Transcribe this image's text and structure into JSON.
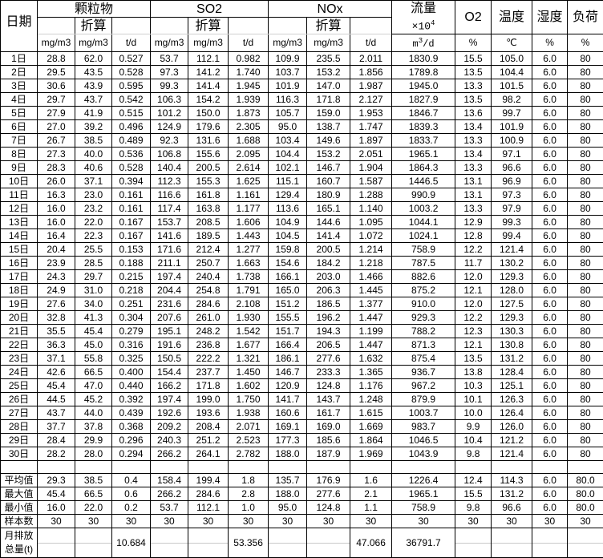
{
  "header": {
    "date": "日期",
    "groups": [
      "颗粒物",
      "SO2",
      "NOx"
    ],
    "converted": "折算",
    "flow": "流量",
    "flow_mult": "×10",
    "flow_exp": "4",
    "flow_unit_a": "m",
    "flow_unit_exp": "3",
    "flow_unit_b": "/d",
    "o2": "O2",
    "temp": "温度",
    "humidity": "湿度",
    "load": "负荷",
    "units": [
      "mg/m3",
      "mg/m3",
      "t/d",
      "mg/m3",
      "mg/m3",
      "t/d",
      "mg/m3",
      "mg/m3",
      "t/d"
    ],
    "unit_pct": "%",
    "unit_temp": "℃"
  },
  "rows": [
    [
      "1日",
      "28.8",
      "62.0",
      "0.527",
      "53.7",
      "112.1",
      "0.982",
      "109.9",
      "235.5",
      "2.011",
      "1830.9",
      "15.5",
      "105.0",
      "6.0",
      "80"
    ],
    [
      "2日",
      "29.5",
      "43.5",
      "0.528",
      "97.3",
      "141.2",
      "1.740",
      "103.7",
      "153.2",
      "1.856",
      "1789.8",
      "13.5",
      "104.4",
      "6.0",
      "80"
    ],
    [
      "3日",
      "30.6",
      "43.9",
      "0.595",
      "99.3",
      "141.4",
      "1.945",
      "101.9",
      "147.0",
      "1.987",
      "1945.0",
      "13.3",
      "101.5",
      "6.0",
      "80"
    ],
    [
      "4日",
      "29.7",
      "43.7",
      "0.542",
      "106.3",
      "154.2",
      "1.939",
      "116.3",
      "171.8",
      "2.127",
      "1827.9",
      "13.5",
      "98.2",
      "6.0",
      "80"
    ],
    [
      "5日",
      "27.9",
      "41.9",
      "0.515",
      "101.2",
      "150.0",
      "1.873",
      "105.7",
      "159.0",
      "1.953",
      "1846.7",
      "13.6",
      "99.7",
      "6.0",
      "80"
    ],
    [
      "6日",
      "27.0",
      "39.2",
      "0.496",
      "124.9",
      "179.6",
      "2.305",
      "95.0",
      "138.7",
      "1.747",
      "1839.3",
      "13.4",
      "101.9",
      "6.0",
      "80"
    ],
    [
      "7日",
      "26.7",
      "38.5",
      "0.489",
      "92.3",
      "131.6",
      "1.688",
      "103.4",
      "149.6",
      "1.897",
      "1833.7",
      "13.3",
      "100.9",
      "6.0",
      "80"
    ],
    [
      "8日",
      "27.3",
      "40.0",
      "0.536",
      "106.8",
      "155.6",
      "2.095",
      "104.4",
      "153.2",
      "2.051",
      "1965.1",
      "13.4",
      "97.1",
      "6.0",
      "80"
    ],
    [
      "9日",
      "28.3",
      "40.6",
      "0.528",
      "140.4",
      "200.5",
      "2.614",
      "102.1",
      "146.7",
      "1.904",
      "1864.3",
      "13.3",
      "96.6",
      "6.0",
      "80"
    ],
    [
      "10日",
      "26.0",
      "37.1",
      "0.394",
      "112.3",
      "155.3",
      "1.625",
      "115.1",
      "160.7",
      "1.587",
      "1446.5",
      "13.1",
      "96.9",
      "6.0",
      "80"
    ],
    [
      "11日",
      "16.3",
      "23.0",
      "0.161",
      "116.6",
      "161.8",
      "1.161",
      "129.4",
      "180.9",
      "1.288",
      "990.9",
      "13.1",
      "97.3",
      "6.0",
      "80"
    ],
    [
      "12日",
      "16.0",
      "23.2",
      "0.161",
      "117.4",
      "163.8",
      "1.177",
      "113.6",
      "165.1",
      "1.140",
      "1003.2",
      "13.3",
      "97.9",
      "6.0",
      "80"
    ],
    [
      "13日",
      "16.0",
      "22.0",
      "0.167",
      "153.7",
      "208.5",
      "1.606",
      "104.9",
      "144.6",
      "1.095",
      "1044.1",
      "12.9",
      "99.3",
      "6.0",
      "80"
    ],
    [
      "14日",
      "16.4",
      "22.3",
      "0.167",
      "141.6",
      "189.5",
      "1.443",
      "104.5",
      "141.4",
      "1.072",
      "1024.1",
      "12.8",
      "99.4",
      "6.0",
      "80"
    ],
    [
      "15日",
      "20.4",
      "25.5",
      "0.153",
      "171.6",
      "212.4",
      "1.277",
      "159.8",
      "200.5",
      "1.214",
      "758.9",
      "12.2",
      "121.4",
      "6.0",
      "80"
    ],
    [
      "16日",
      "23.9",
      "28.5",
      "0.188",
      "211.1",
      "250.7",
      "1.663",
      "154.6",
      "184.2",
      "1.218",
      "787.5",
      "11.7",
      "130.2",
      "6.0",
      "80"
    ],
    [
      "17日",
      "24.3",
      "29.7",
      "0.215",
      "197.4",
      "240.4",
      "1.738",
      "166.1",
      "203.0",
      "1.466",
      "882.6",
      "12.0",
      "129.3",
      "6.0",
      "80"
    ],
    [
      "18日",
      "24.9",
      "31.0",
      "0.218",
      "204.4",
      "254.8",
      "1.791",
      "165.0",
      "206.3",
      "1.445",
      "875.2",
      "12.1",
      "128.0",
      "6.0",
      "80"
    ],
    [
      "19日",
      "27.6",
      "34.0",
      "0.251",
      "231.6",
      "284.6",
      "2.108",
      "151.2",
      "186.5",
      "1.377",
      "910.0",
      "12.0",
      "127.5",
      "6.0",
      "80"
    ],
    [
      "20日",
      "32.8",
      "41.3",
      "0.304",
      "207.6",
      "261.0",
      "1.930",
      "155.5",
      "196.2",
      "1.447",
      "929.3",
      "12.2",
      "129.3",
      "6.0",
      "80"
    ],
    [
      "21日",
      "35.5",
      "45.4",
      "0.279",
      "195.1",
      "248.2",
      "1.542",
      "151.7",
      "194.3",
      "1.199",
      "788.2",
      "12.3",
      "130.3",
      "6.0",
      "80"
    ],
    [
      "22日",
      "36.3",
      "45.0",
      "0.316",
      "191.6",
      "236.8",
      "1.677",
      "166.4",
      "206.5",
      "1.447",
      "871.3",
      "12.1",
      "130.8",
      "6.0",
      "80"
    ],
    [
      "23日",
      "37.1",
      "55.8",
      "0.325",
      "150.5",
      "222.2",
      "1.321",
      "186.1",
      "277.6",
      "1.632",
      "875.4",
      "13.5",
      "131.2",
      "6.0",
      "80"
    ],
    [
      "24日",
      "42.6",
      "66.5",
      "0.400",
      "154.4",
      "237.7",
      "1.450",
      "146.7",
      "233.3",
      "1.365",
      "936.7",
      "13.8",
      "128.4",
      "6.0",
      "80"
    ],
    [
      "25日",
      "45.4",
      "47.0",
      "0.440",
      "166.2",
      "171.8",
      "1.602",
      "120.9",
      "124.8",
      "1.176",
      "967.2",
      "10.3",
      "125.1",
      "6.0",
      "80"
    ],
    [
      "26日",
      "44.5",
      "45.2",
      "0.392",
      "197.4",
      "199.0",
      "1.750",
      "141.7",
      "143.7",
      "1.248",
      "879.9",
      "10.1",
      "126.3",
      "6.0",
      "80"
    ],
    [
      "27日",
      "43.7",
      "44.0",
      "0.439",
      "192.6",
      "193.6",
      "1.938",
      "160.6",
      "161.7",
      "1.615",
      "1003.7",
      "10.0",
      "126.4",
      "6.0",
      "80"
    ],
    [
      "28日",
      "37.7",
      "37.8",
      "0.368",
      "209.2",
      "208.4",
      "2.071",
      "169.1",
      "169.0",
      "1.669",
      "983.7",
      "9.9",
      "126.0",
      "6.0",
      "80"
    ],
    [
      "29日",
      "28.4",
      "29.9",
      "0.296",
      "240.3",
      "251.2",
      "2.523",
      "177.3",
      "185.6",
      "1.864",
      "1046.5",
      "10.4",
      "121.2",
      "6.0",
      "80"
    ],
    [
      "30日",
      "28.2",
      "28.0",
      "0.294",
      "266.2",
      "264.1",
      "2.782",
      "188.0",
      "187.9",
      "1.969",
      "1043.9",
      "9.8",
      "121.4",
      "6.0",
      "80"
    ]
  ],
  "stats": [
    [
      "平均值",
      "29.3",
      "38.5",
      "0.4",
      "158.4",
      "199.4",
      "1.8",
      "135.7",
      "176.9",
      "1.6",
      "1226.4",
      "12.4",
      "114.3",
      "6.0",
      "80.0"
    ],
    [
      "最大值",
      "45.4",
      "66.5",
      "0.6",
      "266.2",
      "284.6",
      "2.8",
      "188.0",
      "277.6",
      "2.1",
      "1965.1",
      "15.5",
      "131.2",
      "6.0",
      "80.0"
    ],
    [
      "最小值",
      "16.0",
      "22.0",
      "0.2",
      "53.7",
      "112.1",
      "1.0",
      "95.0",
      "124.8",
      "1.1",
      "758.9",
      "9.8",
      "96.6",
      "6.0",
      "80.0"
    ],
    [
      "样本数",
      "30",
      "30",
      "30",
      "30",
      "30",
      "30",
      "30",
      "30",
      "30",
      "30",
      "30",
      "30",
      "30",
      "30"
    ]
  ],
  "total": {
    "label_line1": "月排放",
    "label_line2": "总量(t)",
    "values": [
      "",
      "",
      "10.684",
      "",
      "",
      "53.356",
      "",
      "",
      "47.066",
      "36791.7",
      "",
      "",
      "",
      ""
    ]
  }
}
